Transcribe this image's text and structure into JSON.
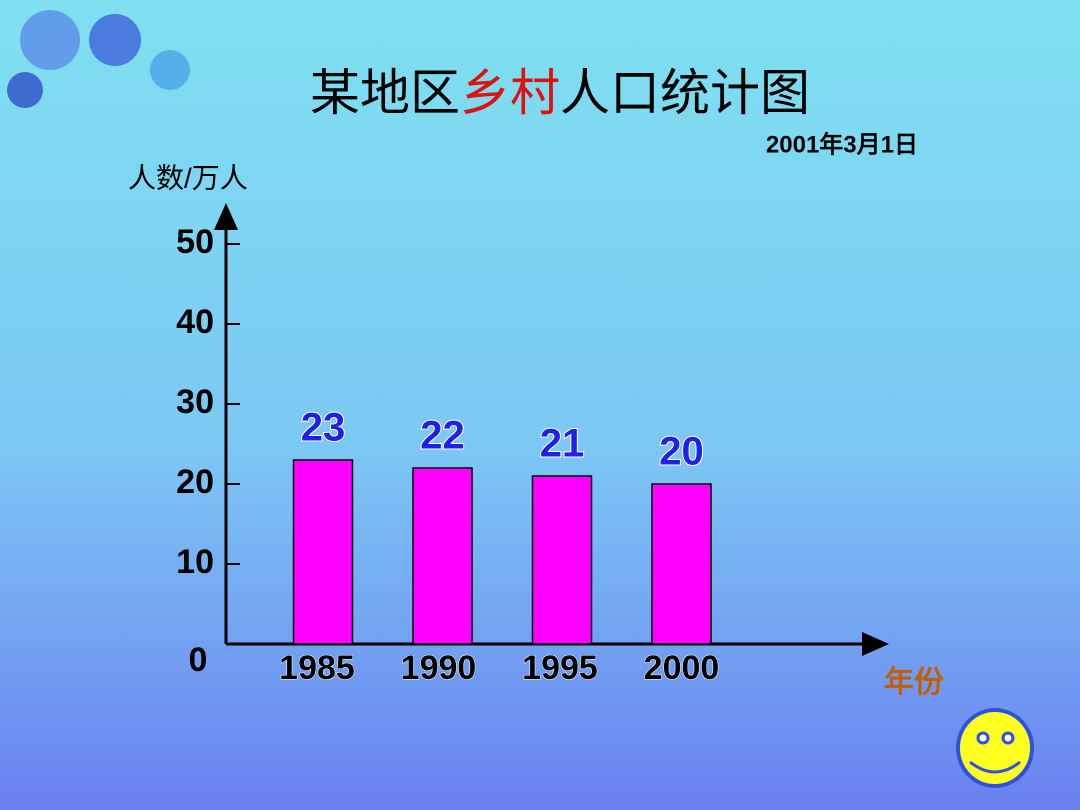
{
  "chart_data": {
    "type": "bar",
    "title": [
      {
        "text": "某地区",
        "color": "#000000"
      },
      {
        "text": "乡村",
        "color": "#e01010"
      },
      {
        "text": "人口统计图",
        "color": "#000000"
      }
    ],
    "subtitle": "2001年3月1日",
    "y_label": "人数/万人",
    "x_label": "年份",
    "categories": [
      "1985",
      "1990",
      "1995",
      "2000"
    ],
    "values": [
      23,
      22,
      21,
      20
    ],
    "color": "#ff00ff",
    "label_color": "#2020e8",
    "ylim": [
      0,
      50
    ],
    "yticks": [
      0,
      10,
      20,
      30,
      40,
      50
    ]
  }
}
